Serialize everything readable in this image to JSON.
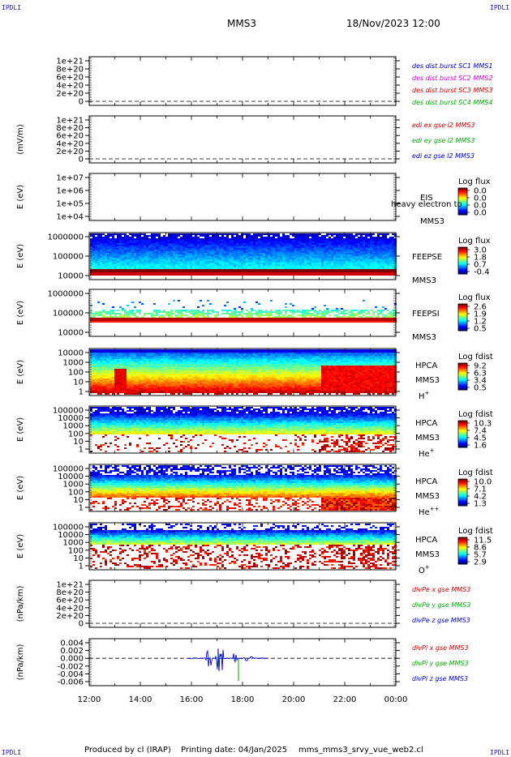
{
  "corners": {
    "tl": "IPDLI",
    "tr": "IPDLI",
    "bl": "IPDLI",
    "br": "IPDLI"
  },
  "header": {
    "spacecraft": "MMS3",
    "datetime": "18/Nov/2023 12:00"
  },
  "footer": {
    "producer": "Produced by cl (IRAP)",
    "printing": "Printing date: 04/Jan/2025",
    "file": "mms_mms3_srvy_vue_web2.cl"
  },
  "chart_data": {
    "type": "multi-panel",
    "x_ticks": [
      "12:00",
      "14:00",
      "16:00",
      "18:00",
      "20:00",
      "22:00",
      "00:00"
    ],
    "panels": [
      {
        "kind": "line",
        "ylabel": "",
        "yticks": [
          "1e+21",
          "8e+20",
          "6e+20",
          "4e+20",
          "2e+20",
          "0"
        ],
        "zero_dashed": true,
        "legend": [
          {
            "text": "des dist burst SC1 MMS1",
            "color": "#0000cc"
          },
          {
            "text": "des dist burst SC2 MMS2",
            "color": "#cc00cc"
          },
          {
            "text": "des dist burst SC3 MMS3",
            "color": "#cc0000"
          },
          {
            "text": "des dist burst SC4 MMS4",
            "color": "#00aa00"
          }
        ]
      },
      {
        "kind": "line",
        "ylabel": "(mV/m)",
        "yticks": [
          "1e+21",
          "8e+20",
          "6e+20",
          "4e+20",
          "2e+20",
          "0"
        ],
        "zero_dashed": true,
        "legend": [
          {
            "text": "edi ex gse l2 MMS3",
            "color": "#cc0000"
          },
          {
            "text": "edi ey gse l2 MMS3",
            "color": "#00aa00"
          },
          {
            "text": "edi ez gse l2 MMS3",
            "color": "#0000cc"
          }
        ]
      },
      {
        "kind": "spectrogram",
        "fill": "none",
        "ylabel": "E (eV)",
        "yticks": [
          "1e+07",
          "1e+06",
          "1e+05",
          "1e+04"
        ],
        "labels": [
          "EIS",
          "MMS3"
        ],
        "overlay": "heavy electron to",
        "cbar": {
          "title": "Log flux",
          "values": [
            "0.0",
            "0.0",
            "0.0",
            "0.0"
          ]
        }
      },
      {
        "kind": "spectrogram",
        "fill": "feepse",
        "ylabel": "E (eV)",
        "yticks": [
          "1000000",
          "100000",
          "10000"
        ],
        "labels": [
          "FEEPSE",
          "MMS3"
        ],
        "cbar": {
          "title": "Log flux",
          "values": [
            "3.0",
            "1.8",
            "0.7",
            "-0.4"
          ]
        }
      },
      {
        "kind": "spectrogram",
        "fill": "feepsi",
        "ylabel": "E (eV)",
        "yticks": [
          "1000000",
          "100000",
          "10000"
        ],
        "labels": [
          "FEEPSI",
          "MMS3"
        ],
        "cbar": {
          "title": "Log flux",
          "values": [
            "2.6",
            "1.9",
            "1.2",
            "0.5"
          ]
        }
      },
      {
        "kind": "spectrogram",
        "fill": "hpca_h",
        "ylabel": "E (eV)",
        "yticks": [
          "10000",
          "1000",
          "100",
          "10",
          "1"
        ],
        "labels": [
          "HPCA",
          "MMS3",
          "H+"
        ],
        "cbar": {
          "title": "Log fdist",
          "values": [
            "9.2",
            "6.3",
            "3.4",
            "0.5"
          ]
        }
      },
      {
        "kind": "spectrogram",
        "fill": "hpca_he",
        "ylabel": "E (eV)",
        "yticks": [
          "100000",
          "10000",
          "1000",
          "100",
          "10",
          "1"
        ],
        "labels": [
          "HPCA",
          "MMS3",
          "He+"
        ],
        "cbar": {
          "title": "Log fdist",
          "values": [
            "10.3",
            "7.4",
            "4.5",
            "1.6"
          ]
        }
      },
      {
        "kind": "spectrogram",
        "fill": "hpca_hepp",
        "ylabel": "E (eV)",
        "yticks": [
          "100000",
          "10000",
          "1000",
          "100",
          "10",
          "1"
        ],
        "labels": [
          "HPCA",
          "MMS3",
          "He++"
        ],
        "cbar": {
          "title": "Log fdist",
          "values": [
            "10.0",
            "7.1",
            "4.2",
            "1.3"
          ]
        }
      },
      {
        "kind": "spectrogram",
        "fill": "hpca_o",
        "ylabel": "E (eV)",
        "yticks": [
          "100000",
          "10000",
          "1000",
          "100",
          "10",
          "1"
        ],
        "labels": [
          "HPCA",
          "MMS3",
          "O+"
        ],
        "cbar": {
          "title": "Log fdist",
          "values": [
            "11.5",
            "8.6",
            "5.7",
            "2.9"
          ]
        }
      },
      {
        "kind": "line",
        "ylabel": "(nPa/km)",
        "yticks": [
          "1e+21",
          "8e+20",
          "6e+20",
          "4e+20",
          "2e+20",
          "0"
        ],
        "zero_dashed": true,
        "legend": [
          {
            "text": "divPe x gse MMS3",
            "color": "#cc0000"
          },
          {
            "text": "divPe y gse MMS3",
            "color": "#00aa00"
          },
          {
            "text": "divPe z gse MMS3",
            "color": "#0000cc"
          }
        ]
      },
      {
        "kind": "line",
        "ylabel": "(nPa/km)",
        "yticks": [
          "0.004",
          "0.002",
          "0.000",
          "-0.002",
          "-0.004",
          "-0.006"
        ],
        "zero_dashed": true,
        "legend": [
          {
            "text": "divPi x gse MMS3",
            "color": "#cc0000"
          },
          {
            "text": "divPi y gse MMS3",
            "color": "#00aa00"
          },
          {
            "text": "divPi z gse MMS3",
            "color": "#0000cc"
          }
        ]
      }
    ]
  }
}
